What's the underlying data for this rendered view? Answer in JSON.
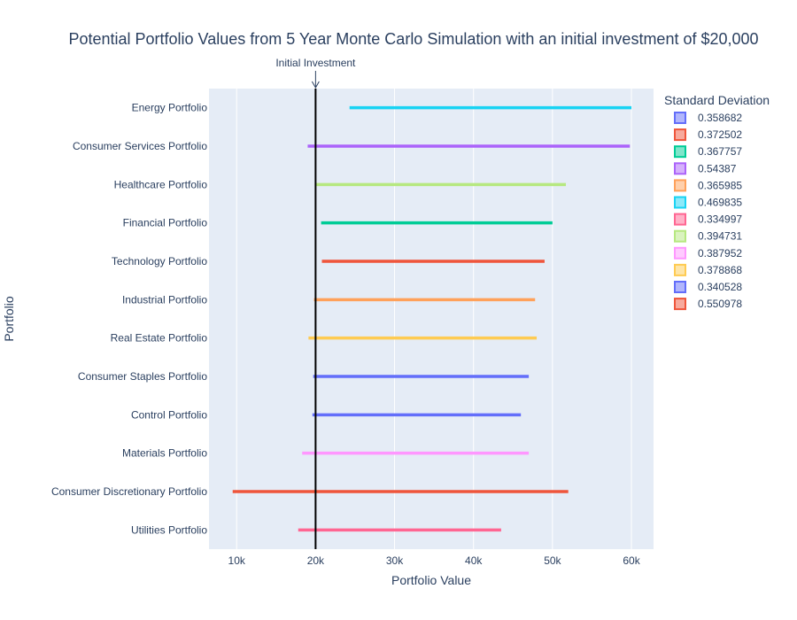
{
  "chart_data": {
    "type": "range-bar",
    "title": "Potential Portfolio Values from 5 Year Monte Carlo Simulation with an initial investment of $20,000",
    "xlabel": "Portfolio Value",
    "ylabel": "Portfolio",
    "xlim": [
      6500,
      62800
    ],
    "x_ticks": [
      10000,
      20000,
      30000,
      40000,
      50000,
      60000
    ],
    "x_tick_labels": [
      "10k",
      "20k",
      "30k",
      "40k",
      "50k",
      "60k"
    ],
    "grid": true,
    "legend_position": "right",
    "legend_title": "Standard Deviation",
    "annotation": {
      "text": "Initial Investment",
      "x": 20000
    },
    "categories": [
      "Energy Portfolio",
      "Consumer Services Portfolio",
      "Healthcare Portfolio",
      "Financial Portfolio",
      "Technology Portfolio",
      "Industrial Portfolio",
      "Real Estate Portfolio",
      "Consumer Staples Portfolio",
      "Control Portfolio",
      "Materials Portfolio",
      "Consumer Discretionary Portfolio",
      "Utilities Portfolio"
    ],
    "series": [
      {
        "name": "0.358682",
        "color": "#636efa",
        "category": "Control Portfolio",
        "range": [
          19600,
          46000
        ]
      },
      {
        "name": "0.372502",
        "color": "#ef553b",
        "category": "Technology Portfolio",
        "range": [
          20800,
          49000
        ]
      },
      {
        "name": "0.367757",
        "color": "#00cc96",
        "category": "Financial Portfolio",
        "range": [
          20700,
          50000
        ]
      },
      {
        "name": "0.54387",
        "color": "#ab63fa",
        "category": "Consumer Services Portfolio",
        "range": [
          19000,
          59800
        ]
      },
      {
        "name": "0.365985",
        "color": "#ffa15a",
        "category": "Industrial Portfolio",
        "range": [
          19800,
          47800
        ]
      },
      {
        "name": "0.469835",
        "color": "#19d3f3",
        "category": "Energy Portfolio",
        "range": [
          24300,
          60000
        ]
      },
      {
        "name": "0.334997",
        "color": "#ff6692",
        "category": "Utilities Portfolio",
        "range": [
          17800,
          43500
        ]
      },
      {
        "name": "0.394731",
        "color": "#b6e880",
        "category": "Healthcare Portfolio",
        "range": [
          19900,
          51700
        ]
      },
      {
        "name": "0.387952",
        "color": "#ff97ff",
        "category": "Materials Portfolio",
        "range": [
          18300,
          47000
        ]
      },
      {
        "name": "0.378868",
        "color": "#fecb52",
        "category": "Real Estate Portfolio",
        "range": [
          19100,
          48000
        ]
      },
      {
        "name": "0.340528",
        "color": "#636efa",
        "category": "Consumer Staples Portfolio",
        "range": [
          19700,
          47000
        ]
      },
      {
        "name": "0.550978",
        "color": "#ef553b",
        "category": "Consumer Discretionary Portfolio",
        "range": [
          9500,
          52000
        ]
      }
    ]
  }
}
